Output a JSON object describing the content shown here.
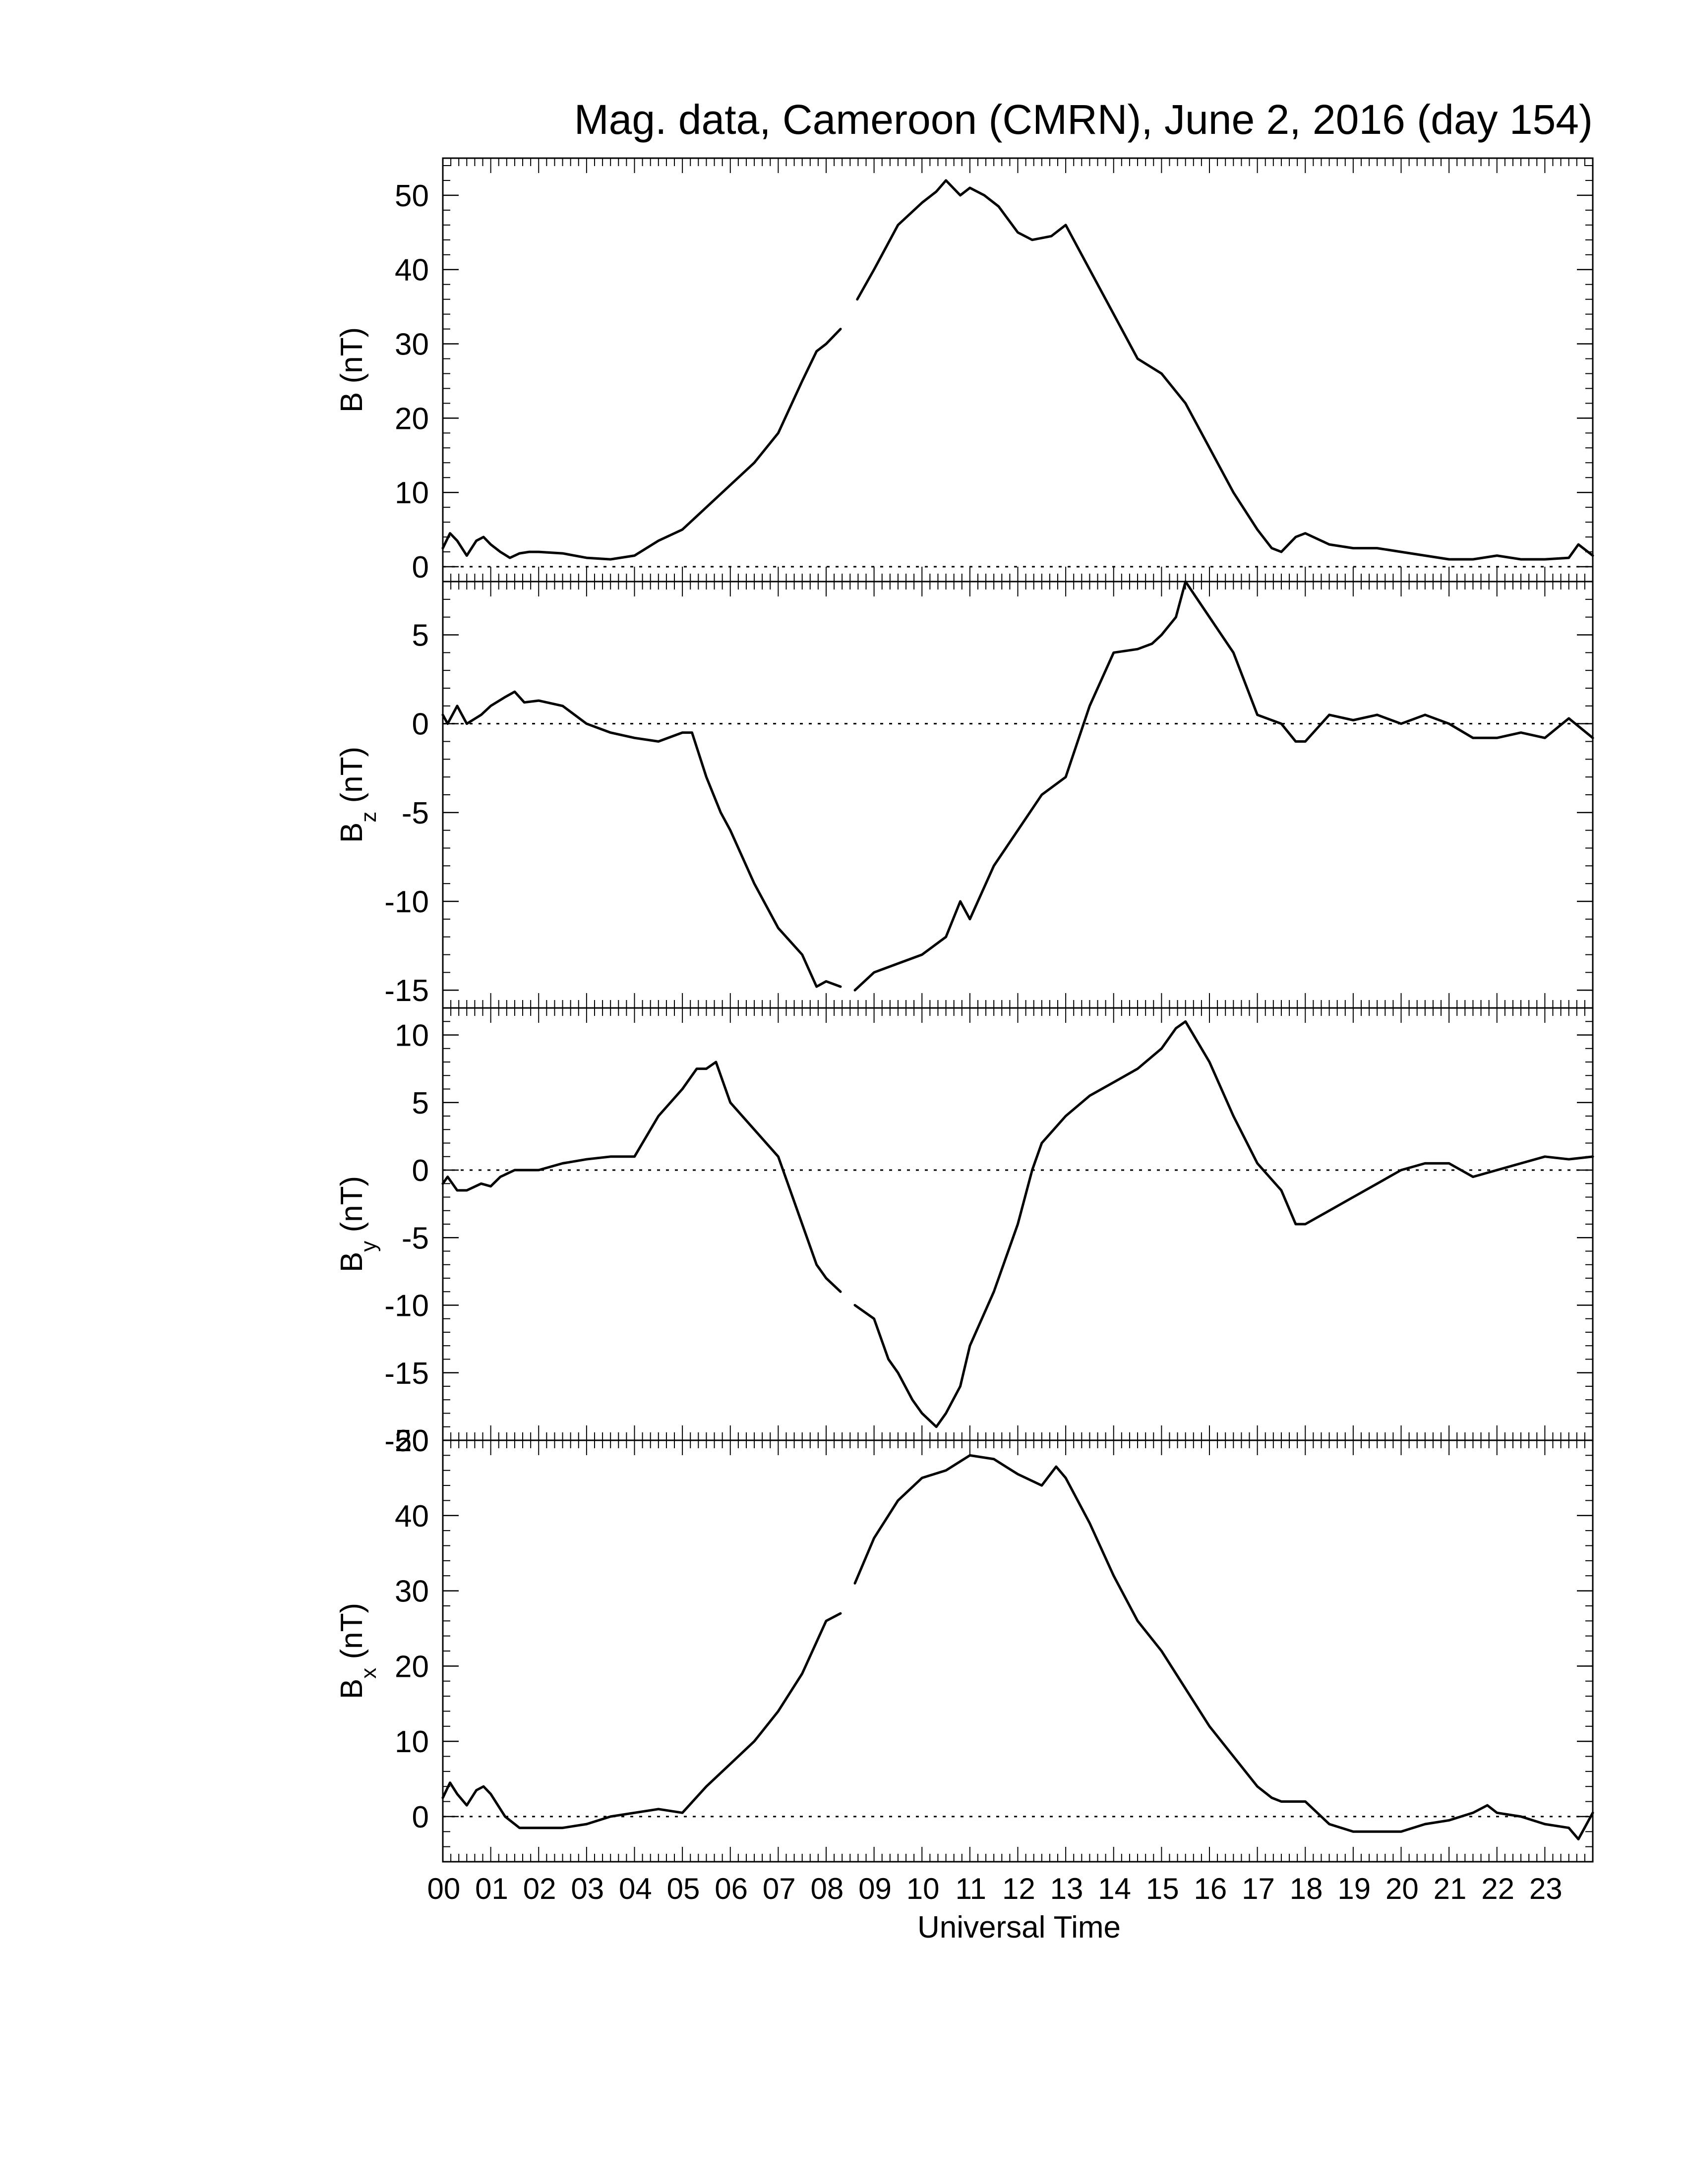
{
  "title": "Mag. data, Cameroon (CMRN), June 2, 2016 (day 154)",
  "colors": {
    "line": "#000000",
    "background": "#ffffff",
    "zero_line": "#000000"
  },
  "x_axis": {
    "label": "Universal Time",
    "range": [
      0,
      24
    ],
    "tick_labels": [
      "00",
      "01",
      "02",
      "03",
      "04",
      "05",
      "06",
      "07",
      "08",
      "09",
      "10",
      "11",
      "12",
      "13",
      "14",
      "15",
      "16",
      "17",
      "18",
      "19",
      "20",
      "21",
      "22",
      "23"
    ]
  },
  "chart_data": [
    {
      "type": "line",
      "ylabel_main": "B",
      "ylabel_sub": "",
      "ylabel_unit": "(nT)",
      "ylim": [
        -2,
        55
      ],
      "yticks": [
        0,
        10,
        20,
        30,
        40,
        50
      ],
      "zero_line": true,
      "gaps": [
        [
          8.3,
          8.65
        ]
      ],
      "x": [
        0.0,
        0.15,
        0.3,
        0.5,
        0.7,
        0.85,
        1.0,
        1.2,
        1.4,
        1.6,
        1.8,
        2.0,
        2.5,
        3.0,
        3.5,
        4.0,
        4.5,
        5.0,
        5.5,
        6.0,
        6.5,
        7.0,
        7.5,
        7.8,
        8.0,
        8.3,
        8.65,
        9.0,
        9.5,
        10.0,
        10.3,
        10.5,
        10.8,
        11.0,
        11.3,
        11.6,
        12.0,
        12.3,
        12.7,
        13.0,
        13.5,
        14.0,
        14.5,
        15.0,
        15.5,
        16.0,
        16.5,
        17.0,
        17.3,
        17.5,
        17.8,
        18.0,
        18.5,
        19.0,
        19.5,
        20.0,
        20.5,
        21.0,
        21.5,
        22.0,
        22.5,
        23.0,
        23.5,
        23.7,
        24.0
      ],
      "y": [
        2.5,
        4.5,
        3.5,
        1.5,
        3.5,
        4.0,
        3.0,
        2.0,
        1.2,
        1.8,
        2.0,
        2.0,
        1.8,
        1.2,
        1.0,
        1.5,
        3.5,
        5.0,
        8.0,
        11.0,
        14.0,
        18.0,
        25.0,
        29.0,
        30.0,
        32.0,
        36.0,
        40.0,
        46.0,
        49.0,
        50.5,
        52.0,
        50.0,
        51.0,
        50.0,
        48.5,
        45.0,
        44.0,
        44.5,
        46.0,
        40.0,
        34.0,
        28.0,
        26.0,
        22.0,
        16.0,
        10.0,
        5.0,
        2.5,
        2.0,
        4.0,
        4.5,
        3.0,
        2.5,
        2.5,
        2.0,
        1.5,
        1.0,
        1.0,
        1.5,
        1.0,
        1.0,
        1.2,
        3.0,
        1.5
      ]
    },
    {
      "type": "line",
      "ylabel_main": "B",
      "ylabel_sub": "z",
      "ylabel_unit": "(nT)",
      "ylim": [
        -16,
        8
      ],
      "yticks": [
        5,
        0,
        -5,
        -10,
        -15
      ],
      "zero_line": true,
      "gaps": [
        [
          8.3,
          8.6
        ]
      ],
      "x": [
        0.0,
        0.1,
        0.3,
        0.5,
        0.8,
        1.0,
        1.3,
        1.5,
        1.7,
        2.0,
        2.5,
        3.0,
        3.5,
        4.0,
        4.5,
        5.0,
        5.2,
        5.5,
        5.8,
        6.0,
        6.5,
        7.0,
        7.5,
        7.8,
        8.0,
        8.3,
        8.6,
        9.0,
        9.5,
        10.0,
        10.5,
        10.8,
        11.0,
        11.5,
        12.0,
        12.5,
        13.0,
        13.5,
        14.0,
        14.5,
        14.8,
        15.0,
        15.3,
        15.5,
        16.0,
        16.5,
        17.0,
        17.5,
        17.8,
        18.0,
        18.5,
        19.0,
        19.5,
        20.0,
        20.5,
        21.0,
        21.5,
        22.0,
        22.5,
        23.0,
        23.5,
        24.0
      ],
      "y": [
        0.5,
        0.0,
        1.0,
        0.0,
        0.5,
        1.0,
        1.5,
        1.8,
        1.2,
        1.3,
        1.0,
        0.0,
        -0.5,
        -0.8,
        -1.0,
        -0.5,
        -0.5,
        -3.0,
        -5.0,
        -6.0,
        -9.0,
        -11.5,
        -13.0,
        -14.8,
        -14.5,
        -14.8,
        -15.0,
        -14.0,
        -13.5,
        -13.0,
        -12.0,
        -10.0,
        -11.0,
        -8.0,
        -6.0,
        -4.0,
        -3.0,
        1.0,
        4.0,
        4.2,
        4.5,
        5.0,
        6.0,
        8.0,
        6.0,
        4.0,
        0.5,
        0.0,
        -1.0,
        -1.0,
        0.5,
        0.2,
        0.5,
        0.0,
        0.5,
        0.0,
        -0.8,
        -0.8,
        -0.5,
        -0.8,
        0.3,
        -0.8
      ]
    },
    {
      "type": "line",
      "ylabel_main": "B",
      "ylabel_sub": "y",
      "ylabel_unit": "(nT)",
      "ylim": [
        -20,
        12
      ],
      "yticks": [
        10,
        5,
        0,
        -5,
        -10,
        -15,
        -20
      ],
      "zero_line": true,
      "gaps": [
        [
          8.3,
          8.6
        ]
      ],
      "x": [
        0.0,
        0.1,
        0.3,
        0.5,
        0.8,
        1.0,
        1.2,
        1.5,
        2.0,
        2.5,
        3.0,
        3.5,
        4.0,
        4.5,
        5.0,
        5.3,
        5.5,
        5.7,
        6.0,
        6.5,
        7.0,
        7.3,
        7.5,
        7.8,
        8.0,
        8.3,
        8.6,
        9.0,
        9.3,
        9.5,
        9.8,
        10.0,
        10.3,
        10.5,
        10.8,
        11.0,
        11.5,
        12.0,
        12.3,
        12.5,
        13.0,
        13.5,
        14.0,
        14.5,
        15.0,
        15.3,
        15.5,
        16.0,
        16.5,
        17.0,
        17.5,
        17.8,
        18.0,
        18.5,
        19.0,
        19.5,
        20.0,
        20.5,
        21.0,
        21.5,
        22.0,
        22.5,
        23.0,
        23.5,
        24.0
      ],
      "y": [
        -1.0,
        -0.5,
        -1.5,
        -1.5,
        -1.0,
        -1.2,
        -0.5,
        0.0,
        0.0,
        0.5,
        0.8,
        1.0,
        1.0,
        4.0,
        6.0,
        7.5,
        7.5,
        8.0,
        5.0,
        3.0,
        1.0,
        -2.0,
        -4.0,
        -7.0,
        -8.0,
        -9.0,
        -10.0,
        -11.0,
        -14.0,
        -15.0,
        -17.0,
        -18.0,
        -19.0,
        -18.0,
        -16.0,
        -13.0,
        -9.0,
        -4.0,
        0.0,
        2.0,
        4.0,
        5.5,
        6.5,
        7.5,
        9.0,
        10.5,
        11.0,
        8.0,
        4.0,
        0.5,
        -1.5,
        -4.0,
        -4.0,
        -3.0,
        -2.0,
        -1.0,
        0.0,
        0.5,
        0.5,
        -0.5,
        0.0,
        0.5,
        1.0,
        0.8,
        1.0
      ]
    },
    {
      "type": "line",
      "ylabel_main": "B",
      "ylabel_sub": "x",
      "ylabel_unit": "(nT)",
      "ylim": [
        -6,
        50
      ],
      "yticks": [
        0,
        10,
        20,
        30,
        40,
        50
      ],
      "zero_line": true,
      "gaps": [
        [
          8.3,
          8.6
        ]
      ],
      "x": [
        0.0,
        0.15,
        0.3,
        0.5,
        0.7,
        0.85,
        1.0,
        1.3,
        1.6,
        2.0,
        2.5,
        3.0,
        3.5,
        4.0,
        4.5,
        5.0,
        5.5,
        6.0,
        6.5,
        7.0,
        7.5,
        8.0,
        8.3,
        8.6,
        9.0,
        9.5,
        10.0,
        10.5,
        11.0,
        11.5,
        12.0,
        12.5,
        12.8,
        13.0,
        13.5,
        14.0,
        14.5,
        15.0,
        15.5,
        16.0,
        16.5,
        17.0,
        17.3,
        17.5,
        18.0,
        18.5,
        19.0,
        19.5,
        20.0,
        20.5,
        21.0,
        21.5,
        21.8,
        22.0,
        22.5,
        23.0,
        23.5,
        23.7,
        24.0
      ],
      "y": [
        2.5,
        4.5,
        3.0,
        1.5,
        3.5,
        4.0,
        3.0,
        0.0,
        -1.5,
        -1.5,
        -1.5,
        -1.0,
        0.0,
        0.5,
        1.0,
        0.5,
        4.0,
        7.0,
        10.0,
        14.0,
        19.0,
        26.0,
        27.0,
        31.0,
        37.0,
        42.0,
        45.0,
        46.0,
        48.0,
        47.5,
        45.5,
        44.0,
        46.5,
        45.0,
        39.0,
        32.0,
        26.0,
        22.0,
        17.0,
        12.0,
        8.0,
        4.0,
        2.5,
        2.0,
        2.0,
        -1.0,
        -2.0,
        -2.0,
        -2.0,
        -1.0,
        -0.5,
        0.5,
        1.5,
        0.5,
        0.0,
        -1.0,
        -1.5,
        -3.0,
        0.5
      ]
    }
  ]
}
